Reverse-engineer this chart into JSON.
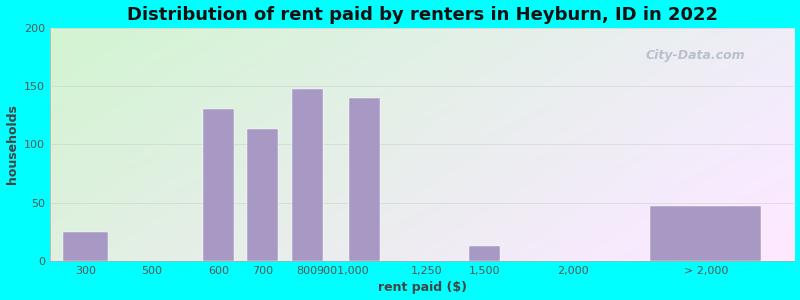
{
  "title": "Distribution of rent paid by renters in Heyburn, ID in 2022",
  "xlabel": "rent paid ($)",
  "ylabel": "households",
  "background_outer": "#00FFFF",
  "bar_color": "#a899c4",
  "ylim": [
    0,
    200
  ],
  "yticks": [
    0,
    50,
    100,
    150,
    200
  ],
  "values": [
    25,
    0,
    130,
    113,
    148,
    140,
    0,
    13,
    0,
    47
  ],
  "x_positions": [
    0.5,
    2.0,
    3.5,
    4.5,
    5.5,
    6.8,
    8.2,
    9.5,
    11.5,
    14.5
  ],
  "bar_widths": [
    1.0,
    0.8,
    0.7,
    0.7,
    0.7,
    0.7,
    0.7,
    0.7,
    0.7,
    2.5
  ],
  "tick_positions": [
    0.5,
    2.0,
    3.5,
    4.5,
    5.5,
    6.3,
    8.2,
    9.5,
    11.5,
    14.5
  ],
  "tick_labels": [
    "300",
    "500",
    "600",
    "700",
    "800",
    "9001,000",
    "1,250",
    "1,500",
    "2,000",
    "> 2,000"
  ],
  "xlim": [
    -0.3,
    16.5
  ],
  "title_fontsize": 13,
  "axis_label_fontsize": 9,
  "tick_fontsize": 8,
  "watermark_text": "City-Data.com",
  "grid_color": "#cccccc",
  "grid_alpha": 0.6
}
